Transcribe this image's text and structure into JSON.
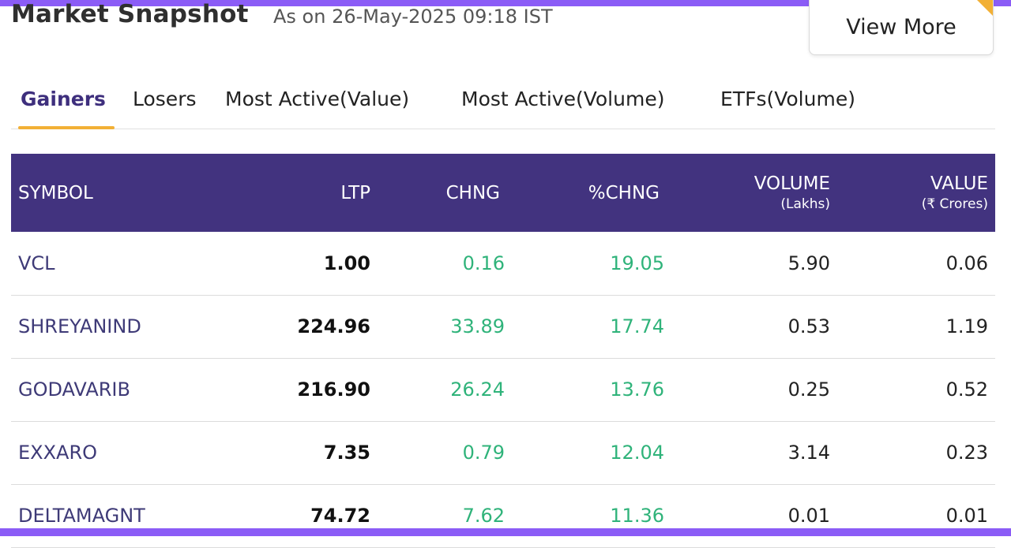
{
  "header": {
    "title": "Market Snapshot",
    "as_of": "As on 26-May-2025 09:18 IST",
    "view_more": "View More"
  },
  "tabs": [
    {
      "label": "Gainers",
      "active": true
    },
    {
      "label": "Losers",
      "active": false
    },
    {
      "label": "Most Active(Value)",
      "active": false
    },
    {
      "label": "Most Active(Volume)",
      "active": false
    },
    {
      "label": "ETFs(Volume)",
      "active": false
    }
  ],
  "table": {
    "columns": {
      "symbol": "SYMBOL",
      "ltp": "LTP",
      "chng": "CHNG",
      "pchng": "%CHNG",
      "volume": "VOLUME",
      "volume_unit": "(Lakhs)",
      "value": "VALUE",
      "value_unit": "(₹ Crores)"
    },
    "rows": [
      {
        "symbol": "VCL",
        "ltp": "1.00",
        "chng": "0.16",
        "pchng": "19.05",
        "volume": "5.90",
        "value": "0.06"
      },
      {
        "symbol": "SHREYANIND",
        "ltp": "224.96",
        "chng": "33.89",
        "pchng": "17.74",
        "volume": "0.53",
        "value": "1.19"
      },
      {
        "symbol": "GODAVARIB",
        "ltp": "216.90",
        "chng": "26.24",
        "pchng": "13.76",
        "volume": "0.25",
        "value": "0.52"
      },
      {
        "symbol": "EXXARO",
        "ltp": "7.35",
        "chng": "0.79",
        "pchng": "12.04",
        "volume": "3.14",
        "value": "0.23"
      },
      {
        "symbol": "DELTAMAGNT",
        "ltp": "74.72",
        "chng": "7.62",
        "pchng": "11.36",
        "volume": "0.01",
        "value": "0.01"
      }
    ]
  },
  "colors": {
    "accent_purple": "#42337f",
    "frame_purple": "#8b5cf6",
    "tab_underline": "#f2b035",
    "gain_green": "#2fb37a"
  }
}
